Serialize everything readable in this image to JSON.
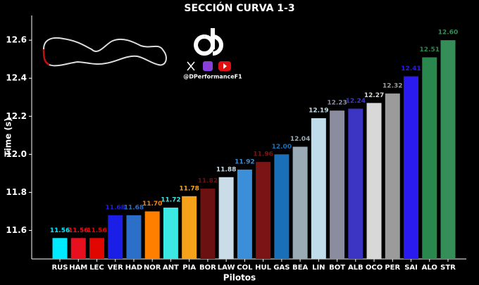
{
  "chart_data": {
    "type": "bar",
    "title": "SECCIÓN CURVA 1-3",
    "xlabel": "Pilotos",
    "ylabel": "Time (s)",
    "brand": "@DPerformanceF1",
    "categories": [
      "RUS",
      "HAM",
      "LEC",
      "VER",
      "HAD",
      "NOR",
      "ANT",
      "PIA",
      "BOR",
      "LAW",
      "COL",
      "HUL",
      "GAS",
      "BEA",
      "LIN",
      "BOT",
      "ALB",
      "OCO",
      "PER",
      "SAI",
      "ALO",
      "STR"
    ],
    "values": [
      11.56,
      11.56,
      11.56,
      11.68,
      11.68,
      11.7,
      11.72,
      11.78,
      11.82,
      11.88,
      11.92,
      11.96,
      12.0,
      12.04,
      12.19,
      12.23,
      12.24,
      12.27,
      12.32,
      12.41,
      12.51,
      12.6
    ],
    "value_labels": [
      "11.56",
      "11.56",
      "11.56",
      "11.68",
      "11.68",
      "11.70",
      "11.72",
      "11.78",
      "11.82",
      "11.88",
      "11.92",
      "11.96",
      "12.00",
      "12.04",
      "12.19",
      "12.23",
      "12.24",
      "12.27",
      "12.32",
      "12.41",
      "12.51",
      "12.60"
    ],
    "colors": [
      "#00eaff",
      "#e8101e",
      "#e10600",
      "#1b1ee6",
      "#2c6fc8",
      "#ff8000",
      "#3ae8e4",
      "#f5a21a",
      "#6b1111",
      "#c9dce8",
      "#3b8fd8",
      "#7b1414",
      "#1a70b8",
      "#9aabb5",
      "#c0dcea",
      "#8c8c9f",
      "#3c35c4",
      "#d8d8d8",
      "#9b9b9b",
      "#2a1bf0",
      "#2a874d",
      "#358d58"
    ],
    "ylim": [
      11.45,
      12.73
    ],
    "yticks": [
      11.6,
      11.8,
      {
        "value": 12,
        "label": "12.0"
      },
      12.2,
      12.4,
      12.6
    ]
  }
}
